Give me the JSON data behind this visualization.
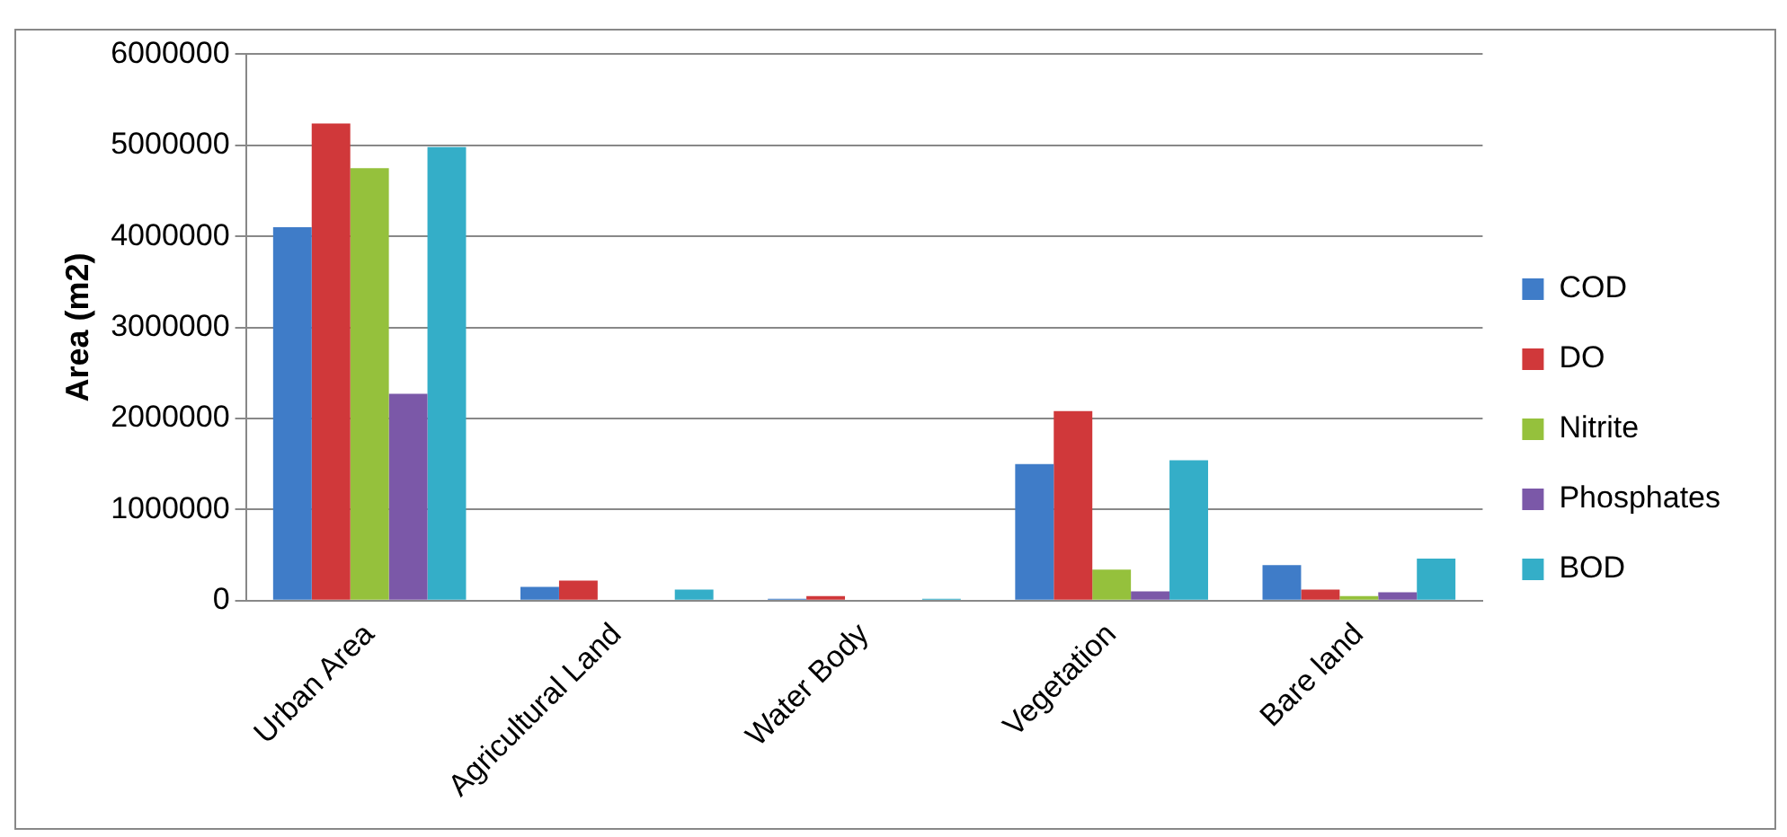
{
  "chart_data": {
    "type": "bar",
    "ylabel": "Area (m2)",
    "categories": [
      "Urban Area",
      "Agricultural Land",
      "Water Body",
      "Vegetation",
      "Bare land"
    ],
    "series": [
      {
        "name": "COD",
        "color": "#3f7cc8",
        "values": [
          4100000,
          150000,
          20000,
          1500000,
          390000
        ]
      },
      {
        "name": "DO",
        "color": "#d0383a",
        "values": [
          5240000,
          220000,
          50000,
          2080000,
          120000
        ]
      },
      {
        "name": "Nitrite",
        "color": "#95c13c",
        "values": [
          4750000,
          0,
          0,
          340000,
          50000
        ]
      },
      {
        "name": "Phosphates",
        "color": "#7b58a8",
        "values": [
          2270000,
          0,
          0,
          100000,
          90000
        ]
      },
      {
        "name": "BOD",
        "color": "#34aec8",
        "values": [
          4980000,
          120000,
          20000,
          1540000,
          460000
        ]
      }
    ],
    "ylim": [
      0,
      6000000
    ],
    "yticks": [
      0,
      1000000,
      2000000,
      3000000,
      4000000,
      5000000,
      6000000
    ],
    "grid": "y",
    "legend": "right"
  }
}
